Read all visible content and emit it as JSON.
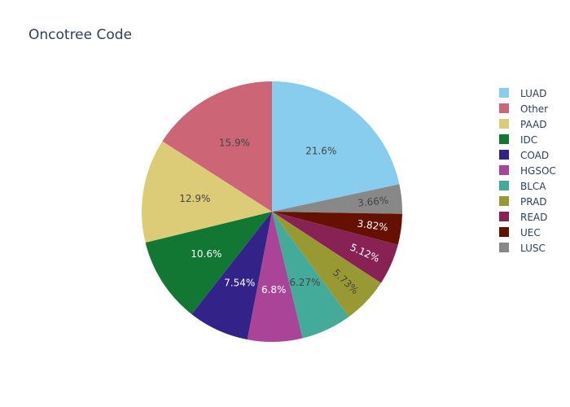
{
  "chart_data": {
    "type": "pie",
    "title": "Oncotree Code",
    "legend_placement": "right",
    "slices": [
      {
        "label": "LUAD",
        "value": 21.6,
        "text": "21.6%",
        "color": "#88CCEE",
        "text_color": "#444444"
      },
      {
        "label": "LUSC",
        "value": 3.66,
        "text": "3.66%",
        "color": "#888888",
        "text_color": "#444444"
      },
      {
        "label": "UEC",
        "value": 3.82,
        "text": "3.82%",
        "color": "#661100",
        "text_color": "#ffffff"
      },
      {
        "label": "READ",
        "value": 5.12,
        "text": "5.12%",
        "color": "#882255",
        "text_color": "#ffffff"
      },
      {
        "label": "PRAD",
        "value": 5.73,
        "text": "5.73%",
        "color": "#999933",
        "text_color": "#444444"
      },
      {
        "label": "BLCA",
        "value": 6.27,
        "text": "6.27%",
        "color": "#44AA99",
        "text_color": "#444444"
      },
      {
        "label": "HGSOC",
        "value": 6.8,
        "text": "6.8%",
        "color": "#AA4499",
        "text_color": "#ffffff"
      },
      {
        "label": "COAD",
        "value": 7.54,
        "text": "7.54%",
        "color": "#332288",
        "text_color": "#ffffff"
      },
      {
        "label": "IDC",
        "value": 10.6,
        "text": "10.6%",
        "color": "#117733",
        "text_color": "#ffffff"
      },
      {
        "label": "PAAD",
        "value": 12.9,
        "text": "12.9%",
        "color": "#DDCC77",
        "text_color": "#444444"
      },
      {
        "label": "Other",
        "value": 15.9,
        "text": "15.9%",
        "color": "#CC6677",
        "text_color": "#444444"
      }
    ],
    "legend_order": [
      "LUAD",
      "Other",
      "PAAD",
      "IDC",
      "COAD",
      "HGSOC",
      "BLCA",
      "PRAD",
      "READ",
      "UEC",
      "LUSC"
    ]
  }
}
